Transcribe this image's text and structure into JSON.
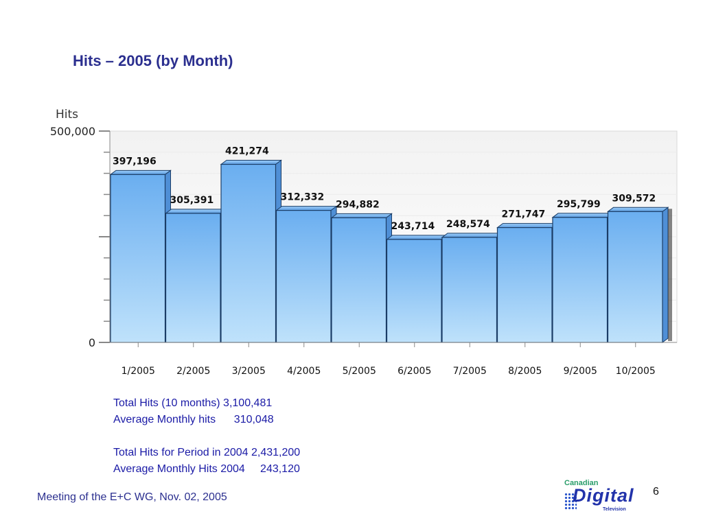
{
  "slide": {
    "title": "Hits – 2005 (by Month)",
    "footer": "Meeting of the E+C WG, Nov. 02, 2005",
    "page_number": "6"
  },
  "stats": {
    "total_10_months": "Total Hits (10 months) 3,100,481",
    "avg_monthly": "Average Monthly hits      310,048",
    "total_2004": "Total Hits for Period in 2004 2,431,200",
    "avg_monthly_2004": "Average Monthly Hits 2004     243,120"
  },
  "logo": {
    "top": "Canadian",
    "main": "Digital",
    "sub": "Television"
  },
  "chart_data": {
    "type": "bar",
    "ylabel": "Hits",
    "ylim": [
      0,
      500000
    ],
    "ytick_labels": [
      "500,000",
      "0"
    ],
    "categories": [
      "1/2005",
      "2/2005",
      "3/2005",
      "4/2005",
      "5/2005",
      "6/2005",
      "7/2005",
      "8/2005",
      "9/2005",
      "10/2005"
    ],
    "values": [
      397196,
      305391,
      421274,
      312332,
      294882,
      243714,
      248574,
      271747,
      295799,
      309572
    ],
    "data_labels": [
      "397,196",
      "305,391",
      "421,274",
      "312,332",
      "294,882",
      "243,714",
      "248,574",
      "271,747",
      "295,799",
      "309,572"
    ],
    "grid": true,
    "bar_color": "#6fb3f2"
  }
}
